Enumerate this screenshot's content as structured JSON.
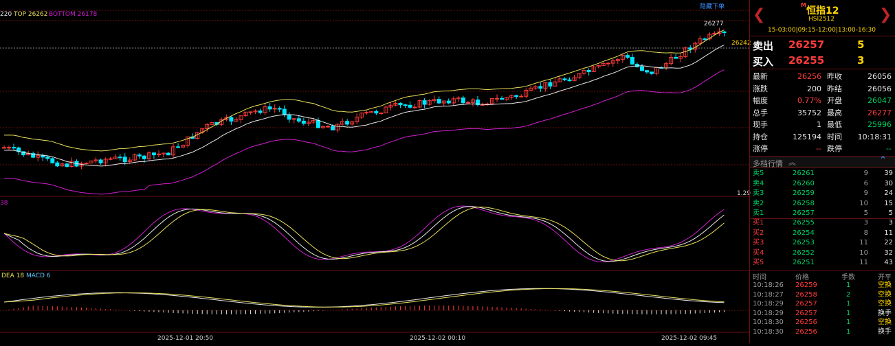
{
  "chart": {
    "indicator_label": "220",
    "top_label": "TOP 26262",
    "bottom_label": "BOTTOM 26178",
    "link_text": "隐藏下单",
    "high_marker": "26277",
    "last_price_tag": "26242",
    "price_axis_low": "1.29",
    "osc_label": "38",
    "macd_label_dea": "DEA 18",
    "macd_label_macd": "MACD 6",
    "time_labels": [
      "2025-12-01 20:50",
      "2025-12-02 00:10",
      "2025-12-02 09:45"
    ],
    "colors": {
      "up": "#ff3b3b",
      "down": "#00e5ff",
      "upper_band": "#e8e05a",
      "mid_band": "#e8e8e8",
      "lower_band": "#d020d0",
      "grid": "#6a1010"
    }
  },
  "side": {
    "title": "恒指12",
    "title_badge": "M",
    "code": "HSI2512",
    "session": "15-03:00|09:15-12:00|13:00-16:30",
    "sell_label": "卖出",
    "sell_price": "26257",
    "sell_qty": "5",
    "buy_label": "买入",
    "buy_price": "26255",
    "buy_qty": "3",
    "quote_rows": [
      {
        "l1": "最新",
        "v1": "26256",
        "c1": "red",
        "l2": "昨收",
        "v2": "26056",
        "c2": "white"
      },
      {
        "l1": "涨跌",
        "v1": "200",
        "c1": "white",
        "l2": "昨结",
        "v2": "26056",
        "c2": "white"
      },
      {
        "l1": "幅度",
        "v1": "0.77%",
        "c1": "red",
        "l2": "开盘",
        "v2": "26047",
        "c2": "green"
      },
      {
        "l1": "总手",
        "v1": "35752",
        "c1": "white",
        "l2": "最高",
        "v2": "26277",
        "c2": "red"
      },
      {
        "l1": "现手",
        "v1": "1",
        "c1": "white",
        "l2": "最低",
        "v2": "25996",
        "c2": "green"
      },
      {
        "l1": "持仓",
        "v1": "125194",
        "c1": "white",
        "l2": "时间",
        "v2": "10:18:31",
        "c2": "white"
      },
      {
        "l1": "涨停",
        "v1": "--",
        "c1": "red",
        "l2": "跌停",
        "v2": "--",
        "c2": "green"
      }
    ],
    "depth_title": "多档行情",
    "depth_toggle": "︽",
    "asks": [
      {
        "label": "卖5",
        "price": "26261",
        "qty": "9",
        "total": "39"
      },
      {
        "label": "卖4",
        "price": "26260",
        "qty": "6",
        "total": "30"
      },
      {
        "label": "卖3",
        "price": "26259",
        "qty": "9",
        "total": "24"
      },
      {
        "label": "卖2",
        "price": "26258",
        "qty": "10",
        "total": "15"
      },
      {
        "label": "卖1",
        "price": "26257",
        "qty": "5",
        "total": "5"
      }
    ],
    "bids": [
      {
        "label": "买1",
        "price": "26255",
        "qty": "3",
        "total": "3"
      },
      {
        "label": "买2",
        "price": "26254",
        "qty": "8",
        "total": "11"
      },
      {
        "label": "买3",
        "price": "26253",
        "qty": "11",
        "total": "22"
      },
      {
        "label": "买4",
        "price": "26252",
        "qty": "10",
        "total": "32"
      },
      {
        "label": "买5",
        "price": "26251",
        "qty": "11",
        "total": "43"
      }
    ],
    "trade_headers": [
      "时间",
      "价格",
      "手数",
      "开平"
    ],
    "trades": [
      {
        "time": "10:18:26",
        "price": "26259",
        "qty": "1",
        "type": "空换",
        "tc": "yellow"
      },
      {
        "time": "10:18:27",
        "price": "26258",
        "qty": "2",
        "type": "空换",
        "tc": "yellow"
      },
      {
        "time": "10:18:29",
        "price": "26257",
        "qty": "1",
        "type": "空换",
        "tc": "yellow"
      },
      {
        "time": "10:18:29",
        "price": "26257",
        "qty": "1",
        "type": "换手",
        "tc": "white"
      },
      {
        "time": "10:18:30",
        "price": "26256",
        "qty": "1",
        "type": "空换",
        "tc": "yellow"
      },
      {
        "time": "10:18:30",
        "price": "26256",
        "qty": "1",
        "type": "换手",
        "tc": "white"
      }
    ]
  }
}
